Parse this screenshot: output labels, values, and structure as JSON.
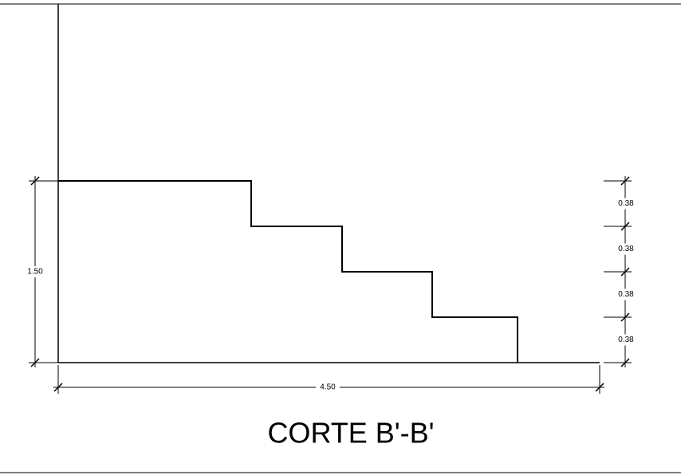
{
  "title": "CORTE B'-B'",
  "dimensions": {
    "height": "1.50",
    "length": "4.50",
    "risers": [
      "0.38",
      "0.38",
      "0.38",
      "0.38"
    ]
  }
}
